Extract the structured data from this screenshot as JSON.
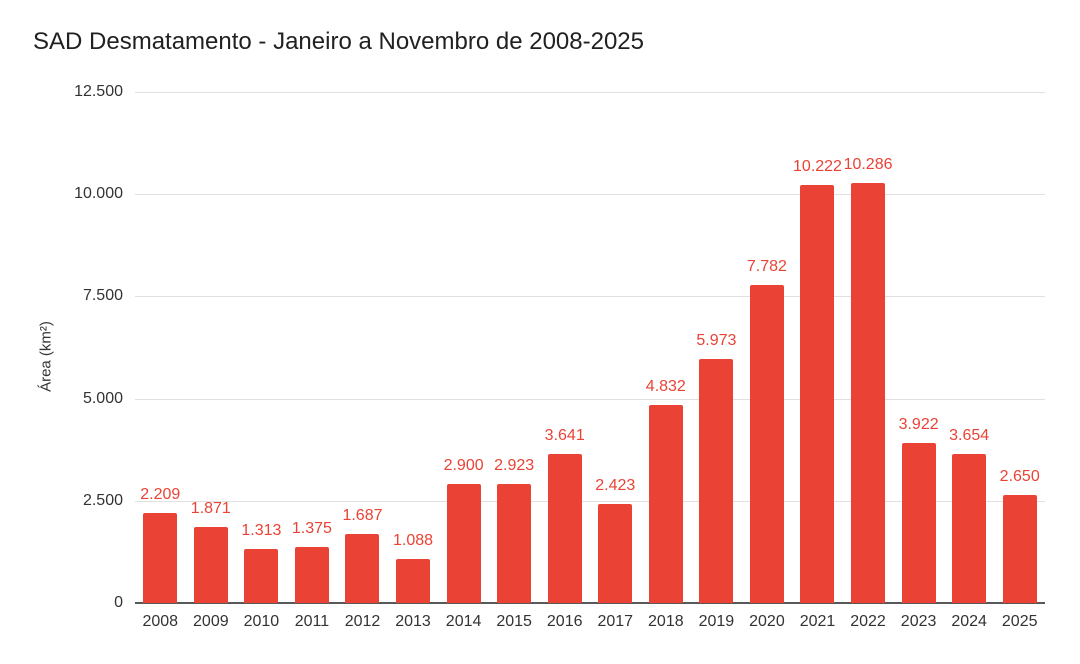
{
  "chart_data": {
    "type": "bar",
    "title": "SAD Desmatamento - Janeiro a Novembro de 2008-2025",
    "xlabel": "",
    "ylabel": "Área (km²)",
    "categories": [
      "2008",
      "2009",
      "2010",
      "2011",
      "2012",
      "2013",
      "2014",
      "2015",
      "2016",
      "2017",
      "2018",
      "2019",
      "2020",
      "2021",
      "2022",
      "2023",
      "2024",
      "2025"
    ],
    "values": [
      2209,
      1871,
      1313,
      1375,
      1687,
      1088,
      2900,
      2923,
      3641,
      2423,
      4832,
      5973,
      7782,
      10222,
      10286,
      3922,
      3654,
      2650
    ],
    "value_labels": [
      "2.209",
      "1.871",
      "1.313",
      "1.375",
      "1.687",
      "1.088",
      "2.900",
      "2.923",
      "3.641",
      "2.423",
      "4.832",
      "5.973",
      "7.782",
      "10.222",
      "10.286",
      "3.922",
      "3.654",
      "2.650"
    ],
    "ylim": [
      0,
      12500
    ],
    "yticks": [
      0,
      2500,
      5000,
      7500,
      10000,
      12500
    ],
    "ytick_labels": [
      "0",
      "2.500",
      "5.000",
      "7.500",
      "10.000",
      "12.500"
    ],
    "grid": true,
    "legend": "none",
    "colors": {
      "bar": "#ea4335",
      "data_label": "#ea4335",
      "gridline": "#e0e0e0",
      "axis_line": "#595959",
      "tick_text": "#333333",
      "title_text": "#212121",
      "background": "#ffffff"
    }
  }
}
